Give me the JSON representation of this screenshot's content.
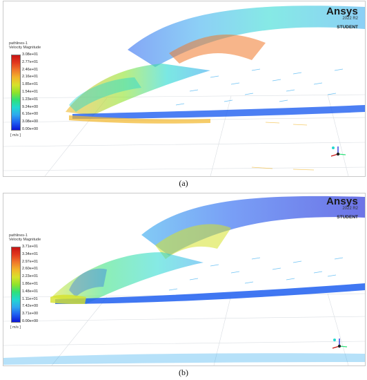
{
  "brand": {
    "logo": "Ansys",
    "version": "2022 R2",
    "edition": "STUDENT"
  },
  "panels": [
    {
      "caption": "(a)",
      "legend": {
        "title_line1": "pathlines-1",
        "title_line2": "Velocity Magnitude",
        "unit": "[ m/s ]",
        "labels": [
          "3.08e+01",
          "2.77e+01",
          "2.46e+01",
          "2.16e+01",
          "1.85e+01",
          "1.54e+01",
          "1.23e+01",
          "9.24e+00",
          "6.16e+00",
          "3.08e+00",
          "0.00e+00"
        ]
      }
    },
    {
      "caption": "(b)",
      "legend": {
        "title_line1": "pathlines-1",
        "title_line2": "Velocity Magnitude",
        "unit": "[ m/s ]",
        "labels": [
          "3.71e+01",
          "3.34e+01",
          "2.97e+01",
          "2.60e+01",
          "2.23e+01",
          "1.86e+01",
          "1.48e+01",
          "1.11e+01",
          "7.42e+00",
          "3.71e+00",
          "0.00e+00"
        ]
      }
    }
  ],
  "colors": {
    "scale": [
      "#0b16d6",
      "#1f5ff0",
      "#2fa8ee",
      "#22d8d0",
      "#2ee07a",
      "#8fe32a",
      "#d6e22a",
      "#f2b62a",
      "#f0782a",
      "#e2391e",
      "#c81414"
    ]
  }
}
